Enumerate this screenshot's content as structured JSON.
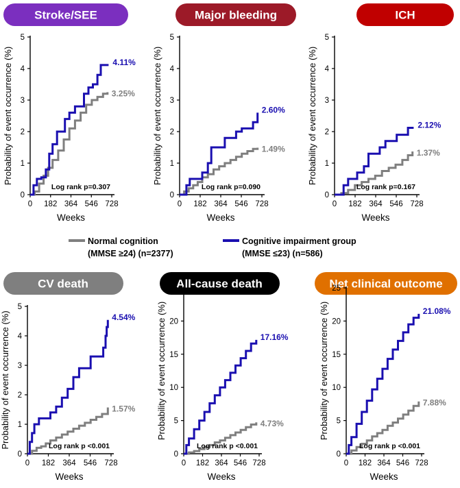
{
  "colors": {
    "normal": "#7f7f7f",
    "impaired": "#1a0fb0"
  },
  "legend": {
    "normal_line1": "Normal cognition",
    "normal_line2": "(MMSE ≥24) (n=2377)",
    "impaired_line1": "Cognitive impairment group",
    "impaired_line2": "(MMSE ≤23) (n=586)"
  },
  "chart_data": [
    {
      "type": "line",
      "title": "Stroke/SEE",
      "title_color": "#7b2fbf",
      "xlabel": "Weeks",
      "ylabel": "Probability of event occurrence (%)",
      "xlim": [
        0,
        728
      ],
      "ylim": [
        0,
        5
      ],
      "xticks": [
        0,
        182,
        364,
        546,
        728
      ],
      "yticks": [
        0,
        1,
        2,
        3,
        4,
        5
      ],
      "log_rank": "Log rank p=0.307",
      "series": [
        {
          "name": "Normal cognition",
          "end_label": "3.25%",
          "x": [
            0,
            40,
            80,
            120,
            160,
            200,
            250,
            300,
            350,
            400,
            450,
            500,
            550,
            600,
            650,
            690
          ],
          "y": [
            0,
            0.1,
            0.35,
            0.6,
            0.85,
            1.1,
            1.4,
            1.75,
            2.1,
            2.35,
            2.6,
            2.85,
            3.0,
            3.1,
            3.2,
            3.25
          ]
        },
        {
          "name": "Cognitive impairment group",
          "end_label": "4.11%",
          "x": [
            0,
            30,
            60,
            100,
            140,
            170,
            200,
            240,
            280,
            310,
            350,
            400,
            440,
            480,
            520,
            560,
            600,
            630,
            660,
            700
          ],
          "y": [
            0,
            0.3,
            0.5,
            0.55,
            0.8,
            1.3,
            1.6,
            2.0,
            2.0,
            2.4,
            2.6,
            2.8,
            2.8,
            3.2,
            3.4,
            3.5,
            3.8,
            4.11,
            4.11,
            4.11
          ]
        }
      ]
    },
    {
      "type": "line",
      "title": "Major bleeding",
      "title_color": "#9c1a28",
      "xlabel": "Weeks",
      "ylabel": "Probability of event occurrence (%)",
      "xlim": [
        0,
        728
      ],
      "ylim": [
        0,
        5
      ],
      "xticks": [
        0,
        182,
        364,
        546,
        728
      ],
      "yticks": [
        0,
        1,
        2,
        3,
        4,
        5
      ],
      "log_rank": "Log rank p=0.090",
      "series": [
        {
          "name": "Normal cognition",
          "end_label": "1.49%",
          "x": [
            0,
            40,
            80,
            120,
            160,
            200,
            250,
            300,
            350,
            400,
            450,
            500,
            550,
            600,
            650,
            690
          ],
          "y": [
            0,
            0.1,
            0.2,
            0.3,
            0.4,
            0.55,
            0.65,
            0.8,
            0.9,
            1.0,
            1.1,
            1.2,
            1.3,
            1.38,
            1.45,
            1.49
          ]
        },
        {
          "name": "Cognitive impairment group",
          "end_label": "2.60%",
          "x": [
            0,
            60,
            90,
            150,
            200,
            250,
            280,
            350,
            400,
            450,
            500,
            550,
            600,
            650,
            690
          ],
          "y": [
            0,
            0.3,
            0.5,
            0.5,
            0.7,
            1.0,
            1.5,
            1.5,
            1.8,
            1.8,
            2.0,
            2.1,
            2.1,
            2.3,
            2.6
          ]
        }
      ]
    },
    {
      "type": "line",
      "title": "ICH",
      "title_color": "#c00000",
      "xlabel": "Weeks",
      "ylabel": "Probability of event occurrence (%)",
      "xlim": [
        0,
        728
      ],
      "ylim": [
        0,
        5
      ],
      "xticks": [
        0,
        182,
        364,
        546,
        728
      ],
      "yticks": [
        0,
        1,
        2,
        3,
        4,
        5
      ],
      "log_rank": "Log rank p=0.167",
      "series": [
        {
          "name": "Normal cognition",
          "end_label": "1.37%",
          "x": [
            0,
            60,
            120,
            180,
            240,
            300,
            360,
            420,
            480,
            540,
            600,
            650,
            690
          ],
          "y": [
            0,
            0.05,
            0.15,
            0.3,
            0.4,
            0.5,
            0.6,
            0.75,
            0.85,
            0.95,
            1.1,
            1.25,
            1.37
          ]
        },
        {
          "name": "Cognitive impairment group",
          "end_label": "2.12%",
          "x": [
            0,
            80,
            120,
            200,
            260,
            300,
            350,
            400,
            450,
            500,
            550,
            600,
            650,
            700
          ],
          "y": [
            0,
            0.3,
            0.5,
            0.7,
            0.9,
            1.3,
            1.3,
            1.5,
            1.7,
            1.7,
            1.9,
            1.9,
            2.12,
            2.12
          ]
        }
      ]
    },
    {
      "type": "line",
      "title": "CV death",
      "title_color": "#7f7f7f",
      "xlabel": "Weeks",
      "ylabel": "Probability of event occurrence (%)",
      "xlim": [
        0,
        728
      ],
      "ylim": [
        0,
        5
      ],
      "xticks": [
        0,
        182,
        364,
        546,
        728
      ],
      "yticks": [
        0,
        1,
        2,
        3,
        4,
        5
      ],
      "log_rank": "Log rank p <0.001",
      "series": [
        {
          "name": "Normal cognition",
          "end_label": "1.57%",
          "x": [
            0,
            40,
            80,
            120,
            160,
            200,
            250,
            300,
            350,
            400,
            450,
            500,
            550,
            600,
            650,
            700
          ],
          "y": [
            0,
            0.1,
            0.2,
            0.25,
            0.35,
            0.45,
            0.55,
            0.65,
            0.75,
            0.85,
            0.95,
            1.05,
            1.15,
            1.25,
            1.35,
            1.57
          ]
        },
        {
          "name": "Cognitive impairment group",
          "end_label": "4.54%",
          "x": [
            0,
            20,
            40,
            60,
            100,
            150,
            200,
            250,
            300,
            350,
            400,
            450,
            500,
            550,
            600,
            640,
            660,
            680,
            690,
            700
          ],
          "y": [
            0,
            0.4,
            0.7,
            1.0,
            1.2,
            1.2,
            1.4,
            1.6,
            1.9,
            2.2,
            2.6,
            2.9,
            2.9,
            3.3,
            3.3,
            3.3,
            3.6,
            4.0,
            4.3,
            4.54
          ]
        }
      ]
    },
    {
      "type": "line",
      "title": "All-cause death",
      "title_color": "#000000",
      "xlabel": "Weeks",
      "ylabel": "Probability of event occurrence (%)",
      "xlim": [
        0,
        728
      ],
      "ylim": [
        0,
        25
      ],
      "xticks": [
        0,
        182,
        364,
        546,
        728
      ],
      "yticks": [
        0,
        5,
        10,
        15,
        20,
        25
      ],
      "log_rank": "Log rank p <0.001",
      "series": [
        {
          "name": "Normal cognition",
          "end_label": "4.73%",
          "x": [
            0,
            50,
            100,
            150,
            200,
            250,
            300,
            350,
            400,
            450,
            500,
            550,
            600,
            650,
            700
          ],
          "y": [
            0,
            0.2,
            0.4,
            0.7,
            1.0,
            1.3,
            1.7,
            2.0,
            2.4,
            2.8,
            3.2,
            3.6,
            4.0,
            4.4,
            4.73
          ]
        },
        {
          "name": "Cognitive impairment group",
          "end_label": "17.16%",
          "x": [
            0,
            25,
            50,
            100,
            150,
            200,
            250,
            300,
            350,
            400,
            450,
            500,
            550,
            600,
            650,
            700
          ],
          "y": [
            0,
            1.3,
            2.3,
            3.7,
            5.0,
            6.3,
            7.6,
            8.8,
            10.0,
            11.1,
            12.2,
            13.3,
            14.4,
            15.5,
            16.6,
            17.16
          ]
        }
      ]
    },
    {
      "type": "line",
      "title": "Net clinical outcome",
      "title_color": "#e07000",
      "xlabel": "Weeks",
      "ylabel": "Probability of event occurrence (%)",
      "xlim": [
        0,
        728
      ],
      "ylim": [
        0,
        25
      ],
      "xticks": [
        0,
        182,
        364,
        546,
        728
      ],
      "yticks": [
        0,
        5,
        10,
        15,
        20,
        25
      ],
      "log_rank": "Log rank p <0.001",
      "series": [
        {
          "name": "Normal cognition",
          "end_label": "7.88%",
          "x": [
            0,
            50,
            100,
            150,
            200,
            250,
            300,
            350,
            400,
            450,
            500,
            550,
            600,
            650,
            700
          ],
          "y": [
            0,
            0.5,
            1.0,
            1.5,
            2.0,
            2.6,
            3.1,
            3.6,
            4.2,
            4.7,
            5.3,
            5.9,
            6.5,
            7.2,
            7.88
          ]
        },
        {
          "name": "Cognitive impairment group",
          "end_label": "21.08%",
          "x": [
            0,
            25,
            50,
            100,
            150,
            200,
            250,
            300,
            350,
            400,
            450,
            500,
            550,
            600,
            650,
            700
          ],
          "y": [
            0,
            1.3,
            2.5,
            4.5,
            6.3,
            8.0,
            9.7,
            11.3,
            12.8,
            14.3,
            15.7,
            17.0,
            18.3,
            19.5,
            20.5,
            21.08
          ]
        }
      ]
    }
  ]
}
